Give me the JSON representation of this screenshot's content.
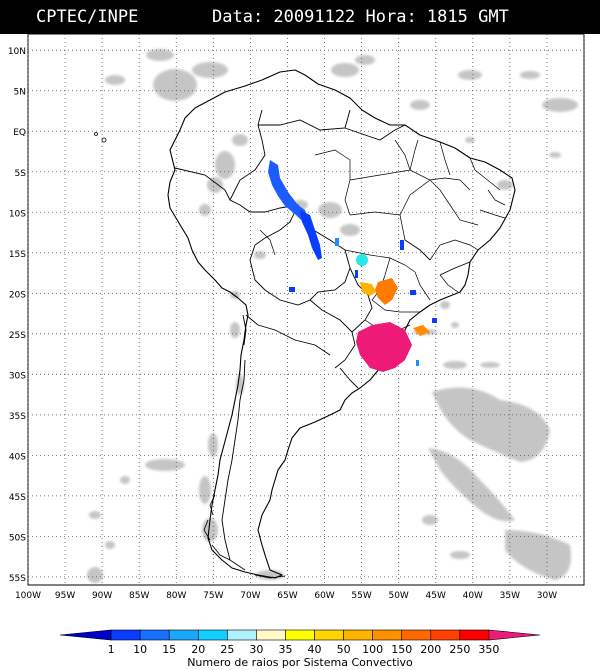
{
  "header": {
    "source": "CPTEC/INPE",
    "datetime": "Data: 20091122 Hora: 1815 GMT"
  },
  "map": {
    "region": "South America",
    "lat_range": [
      -56,
      12
    ],
    "lon_range": [
      -100,
      -25
    ],
    "lat_labels": [
      "10N",
      "5N",
      "EQ",
      "5S",
      "10S",
      "15S",
      "20S",
      "25S",
      "30S",
      "35S",
      "40S",
      "45S",
      "50S",
      "55S"
    ],
    "lon_labels": [
      "100W",
      "95W",
      "90W",
      "85W",
      "80W",
      "75W",
      "70W",
      "65W",
      "60W",
      "55W",
      "50W",
      "45W",
      "40W",
      "35W",
      "30W"
    ],
    "grid": "dotted, every 5 degrees",
    "colors": {
      "ocean": "#ffffff",
      "land": "#ffffff",
      "borders": "#000000",
      "cloud_gray": "#b8b8b8"
    },
    "lightning_systems": [
      {
        "area": "western Amazon / Acre",
        "class": "1-10",
        "color": "#1c5cff"
      },
      {
        "area": "Rondonia strip",
        "class": "1-10",
        "color": "#0a3cff"
      },
      {
        "area": "Mato Grosso",
        "class": "15-20",
        "color": "#1890ff"
      },
      {
        "area": "Goias",
        "class": "25-30",
        "color": "#26e8e8"
      },
      {
        "area": "Mato Grosso do Sul",
        "class": "50-100",
        "color": "#ffb400"
      },
      {
        "area": "Sao Paulo state",
        "class": "150-200",
        "color": "#ff7c00"
      },
      {
        "area": "Parana coast",
        "class": "150-200",
        "color": "#ff8c00"
      },
      {
        "area": "Parana / Santa Catarina / NE Argentina",
        "class": "350+",
        "color": "#ee1a78"
      }
    ]
  },
  "legend": {
    "labels": [
      "1",
      "10",
      "15",
      "20",
      "25",
      "30",
      "35",
      "40",
      "50",
      "100",
      "150",
      "200",
      "250",
      "350"
    ],
    "colors": [
      "#0000cc",
      "#0a3cff",
      "#1870ff",
      "#1aa8ff",
      "#10d0ff",
      "#b0f0ff",
      "#fffac8",
      "#ffff00",
      "#ffd400",
      "#ffb400",
      "#ff9000",
      "#ff6a00",
      "#ff4000",
      "#ff0000",
      "#ee1a78"
    ],
    "caption": "Numero de raios por Sistema Convectivo"
  }
}
